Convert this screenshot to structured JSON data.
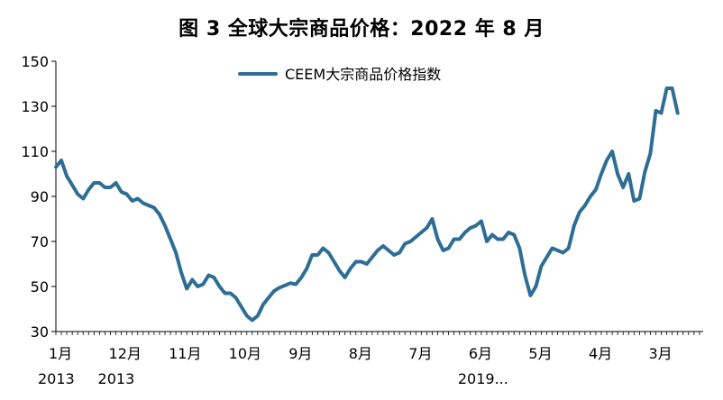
{
  "chart_data": {
    "type": "line",
    "title": "图 3 全球大宗商品价格：2022 年 8 月",
    "ylim": [
      30,
      150
    ],
    "yticks": [
      "150",
      "130",
      "110",
      "90",
      "70",
      "50",
      "30"
    ],
    "ytick_values": [
      150,
      130,
      110,
      90,
      70,
      50,
      30
    ],
    "xticks": [
      {
        "label": "1月",
        "sub": "2013",
        "index": 0
      },
      {
        "label": "12月",
        "sub": "2013",
        "index": 11
      },
      {
        "label": "11月",
        "sub": "",
        "index": 22
      },
      {
        "label": "10月",
        "sub": "",
        "index": 33
      },
      {
        "label": "9月",
        "sub": "",
        "index": 44
      },
      {
        "label": "8月",
        "sub": "",
        "index": 55
      },
      {
        "label": "7月",
        "sub": "",
        "index": 66
      },
      {
        "label": "6月",
        "sub": "2019...",
        "index": 77
      },
      {
        "label": "5月",
        "sub": "",
        "index": 88
      },
      {
        "label": "4月",
        "sub": "",
        "index": 99
      },
      {
        "label": "3月",
        "sub": "",
        "index": 110
      }
    ],
    "legend_position": "top-center",
    "series": [
      {
        "name": "CEEM大宗商品价格指数",
        "color": "#2e6e94",
        "values": [
          103,
          106,
          99,
          95,
          91,
          89,
          93,
          96,
          96,
          94,
          94,
          96,
          92,
          91,
          88,
          89,
          87,
          86,
          85,
          82,
          77,
          71,
          65,
          56,
          49,
          53,
          50,
          51,
          55,
          54,
          50,
          47,
          47,
          45,
          41,
          37,
          35,
          37,
          42,
          45,
          48,
          49.5,
          50.5,
          51.5,
          51,
          54,
          58,
          64,
          64,
          67,
          65,
          61,
          57,
          54,
          58,
          61,
          61,
          60,
          63,
          66,
          68,
          66,
          64,
          65,
          69,
          70,
          72,
          74,
          76,
          80,
          71,
          66,
          67,
          71,
          71,
          74,
          76,
          77,
          79,
          70,
          73,
          71,
          71,
          74,
          73,
          67,
          55,
          46,
          50,
          59,
          63,
          67,
          66,
          65,
          67,
          77,
          83,
          86,
          90,
          93,
          100,
          106,
          110,
          100,
          94,
          100,
          88,
          89,
          101,
          109,
          128,
          127,
          138,
          138,
          127
        ]
      }
    ]
  }
}
